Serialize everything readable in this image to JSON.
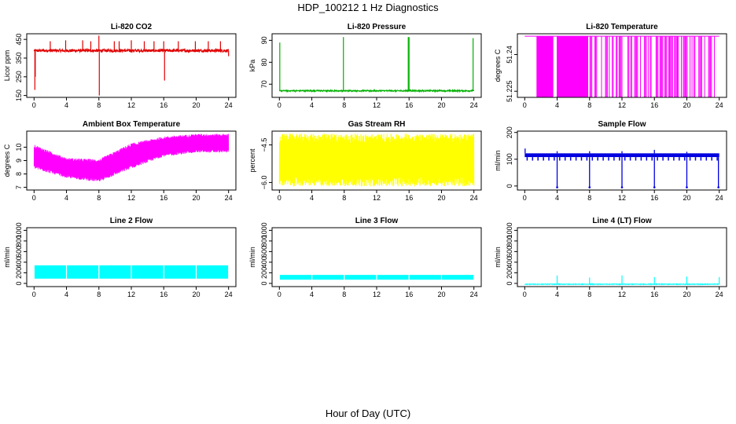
{
  "figure": {
    "title": "HDP_100212  1 Hz Diagnostics",
    "xlabel": "Hour of Day (UTC)"
  },
  "chart_data": [
    {
      "id": "co2",
      "type": "line",
      "title": "Li-820 CO2",
      "ylabel": "Licor ppm",
      "xlim": [
        0,
        24
      ],
      "xticks": [
        0,
        4,
        8,
        12,
        16,
        20,
        24
      ],
      "ylim": [
        140,
        480
      ],
      "yticks": [
        150,
        250,
        350,
        450
      ],
      "color": "#e00000",
      "series": [
        {
          "baseline": 390,
          "noise": 8,
          "spikes": [
            {
              "x": 0.1,
              "y": 180
            },
            {
              "x": 0.15,
              "y": 250
            },
            {
              "x": 2.0,
              "y": 440
            },
            {
              "x": 3.9,
              "y": 445
            },
            {
              "x": 6.0,
              "y": 445
            },
            {
              "x": 7.0,
              "y": 440
            },
            {
              "x": 8.0,
              "y": 470
            },
            {
              "x": 8.05,
              "y": 150
            },
            {
              "x": 9.9,
              "y": 440
            },
            {
              "x": 10.5,
              "y": 440
            },
            {
              "x": 12.0,
              "y": 445
            },
            {
              "x": 13.6,
              "y": 440
            },
            {
              "x": 14.8,
              "y": 440
            },
            {
              "x": 16.0,
              "y": 440
            },
            {
              "x": 16.1,
              "y": 230
            },
            {
              "x": 17.8,
              "y": 440
            },
            {
              "x": 19.9,
              "y": 440
            },
            {
              "x": 21.5,
              "y": 440
            },
            {
              "x": 23.0,
              "y": 440
            },
            {
              "x": 24.0,
              "y": 360
            }
          ]
        }
      ]
    },
    {
      "id": "pressure",
      "type": "line",
      "title": "Li-820 Pressure",
      "ylabel": "kPa",
      "xlim": [
        0,
        24
      ],
      "xticks": [
        0,
        4,
        8,
        12,
        16,
        20,
        24
      ],
      "ylim": [
        64,
        93
      ],
      "yticks": [
        70,
        80,
        90
      ],
      "color": "#00b000",
      "series": [
        {
          "baseline": 67.0,
          "noise": 0.3,
          "spikes": [
            {
              "x": 0.05,
              "y": 89
            },
            {
              "x": 7.9,
              "y": 91.5
            },
            {
              "x": 15.9,
              "y": 91.5
            },
            {
              "x": 16.0,
              "y": 91.5
            },
            {
              "x": 23.9,
              "y": 91
            }
          ]
        }
      ]
    },
    {
      "id": "licor_temp",
      "type": "line",
      "title": "Li-820 Temperature",
      "ylabel": "degrees C",
      "xlim": [
        0,
        24
      ],
      "xticks": [
        0,
        4,
        8,
        12,
        16,
        20,
        24
      ],
      "ylim": [
        51.2225,
        51.2485
      ],
      "yticks": [
        51.225,
        51.24
      ],
      "color": "#ff00ff",
      "series": [
        {
          "baseline": 51.2475,
          "low": 51.2225,
          "dense_ranges": [
            [
              1.5,
              3.5
            ],
            [
              4.0,
              7.8
            ]
          ],
          "sparse_ranges": [
            [
              7.8,
              23.5
            ]
          ]
        }
      ]
    },
    {
      "id": "ambient_temp",
      "type": "line",
      "title": "Ambient Box Temperature",
      "ylabel": "degrees C",
      "xlim": [
        0,
        24
      ],
      "xticks": [
        0,
        4,
        8,
        12,
        16,
        20,
        24
      ],
      "ylim": [
        6.8,
        11.2
      ],
      "yticks": [
        7,
        8,
        9,
        10
      ],
      "color": "#ff00ff",
      "series": [
        {
          "band_lower": [
            {
              "x": 0,
              "y": 8.4
            },
            {
              "x": 4,
              "y": 7.7
            },
            {
              "x": 8,
              "y": 7.4
            },
            {
              "x": 12,
              "y": 8.4
            },
            {
              "x": 16,
              "y": 9.3
            },
            {
              "x": 20,
              "y": 9.6
            },
            {
              "x": 24,
              "y": 9.6
            }
          ],
          "band_upper": [
            {
              "x": 0,
              "y": 10.2
            },
            {
              "x": 4,
              "y": 9.2
            },
            {
              "x": 8,
              "y": 9.1
            },
            {
              "x": 12,
              "y": 10.3
            },
            {
              "x": 16,
              "y": 10.8
            },
            {
              "x": 20,
              "y": 11.0
            },
            {
              "x": 24,
              "y": 11.0
            }
          ]
        }
      ]
    },
    {
      "id": "rh",
      "type": "line",
      "title": "Gas Stream RH",
      "ylabel": "percent",
      "xlim": [
        0,
        24
      ],
      "xticks": [
        0,
        4,
        8,
        12,
        16,
        20,
        24
      ],
      "ylim": [
        -6.3,
        -3.95
      ],
      "yticks": [
        -6.0,
        -4.5
      ],
      "yticklabels": [
        "−6.0",
        "−4.5"
      ],
      "color": "#ffff00",
      "series": [
        {
          "band_lower": -6.15,
          "band_upper": -4.05
        }
      ]
    },
    {
      "id": "sample_flow",
      "type": "line",
      "title": "Sample Flow",
      "ylabel": "ml/min",
      "xlim": [
        0,
        24
      ],
      "xticks": [
        0,
        4,
        8,
        12,
        16,
        20,
        24
      ],
      "ylim": [
        -15,
        205
      ],
      "yticks": [
        0,
        100,
        200
      ],
      "color": "#0000e0",
      "series": [
        {
          "band_lower": 108,
          "band_upper": 122,
          "spikes_up": [
            {
              "x": 0.05,
              "y": 140
            },
            {
              "x": 4.0,
              "y": 130
            },
            {
              "x": 8.0,
              "y": 130
            },
            {
              "x": 12.0,
              "y": 130
            },
            {
              "x": 16.0,
              "y": 135
            },
            {
              "x": 20.0,
              "y": 128
            }
          ],
          "dips": [
            {
              "x": 4.0,
              "y": -5
            },
            {
              "x": 8.0,
              "y": -5
            },
            {
              "x": 12.0,
              "y": -5
            },
            {
              "x": 16.0,
              "y": -5
            },
            {
              "x": 20.0,
              "y": -5
            },
            {
              "x": 23.9,
              "y": -5
            }
          ],
          "small_dips_every": 0.67,
          "small_dip_y": 95
        }
      ]
    },
    {
      "id": "line2_flow",
      "type": "line",
      "title": "Line 2 Flow",
      "ylabel": "ml/min",
      "xlim": [
        0,
        24
      ],
      "xticks": [
        0,
        4,
        8,
        12,
        16,
        20,
        24
      ],
      "ylim": [
        -60,
        1050
      ],
      "yticks": [
        0,
        200,
        400,
        600,
        800,
        1000
      ],
      "color": "#00ffff",
      "series": [
        {
          "band_lower": 90,
          "band_upper": 340,
          "gaps": [
            0,
            4,
            8,
            12,
            16,
            20,
            24
          ]
        }
      ]
    },
    {
      "id": "line3_flow",
      "type": "line",
      "title": "Line 3 Flow",
      "ylabel": "ml/min",
      "xlim": [
        0,
        24
      ],
      "xticks": [
        0,
        4,
        8,
        12,
        16,
        20,
        24
      ],
      "ylim": [
        -60,
        1050
      ],
      "yticks": [
        0,
        200,
        400,
        600,
        800,
        1000
      ],
      "color": "#00ffff",
      "series": [
        {
          "band_lower": 70,
          "band_upper": 160,
          "gaps": [
            0,
            4,
            8,
            12,
            16,
            20,
            24
          ]
        }
      ]
    },
    {
      "id": "line4_flow",
      "type": "line",
      "title": "Line 4 (LT) Flow",
      "ylabel": "ml/min",
      "xlim": [
        0,
        24
      ],
      "xticks": [
        0,
        4,
        8,
        12,
        16,
        20,
        24
      ],
      "ylim": [
        -60,
        1050
      ],
      "yticks": [
        0,
        200,
        400,
        600,
        800,
        1000
      ],
      "color": "#00ffff",
      "series": [
        {
          "baseline": -15,
          "noise": 6,
          "spikes": [
            {
              "x": 4.0,
              "y": 150
            },
            {
              "x": 8.0,
              "y": 110
            },
            {
              "x": 12.0,
              "y": 150
            },
            {
              "x": 16.0,
              "y": 120
            },
            {
              "x": 20.0,
              "y": 130
            },
            {
              "x": 24.0,
              "y": 120
            }
          ]
        }
      ]
    }
  ]
}
